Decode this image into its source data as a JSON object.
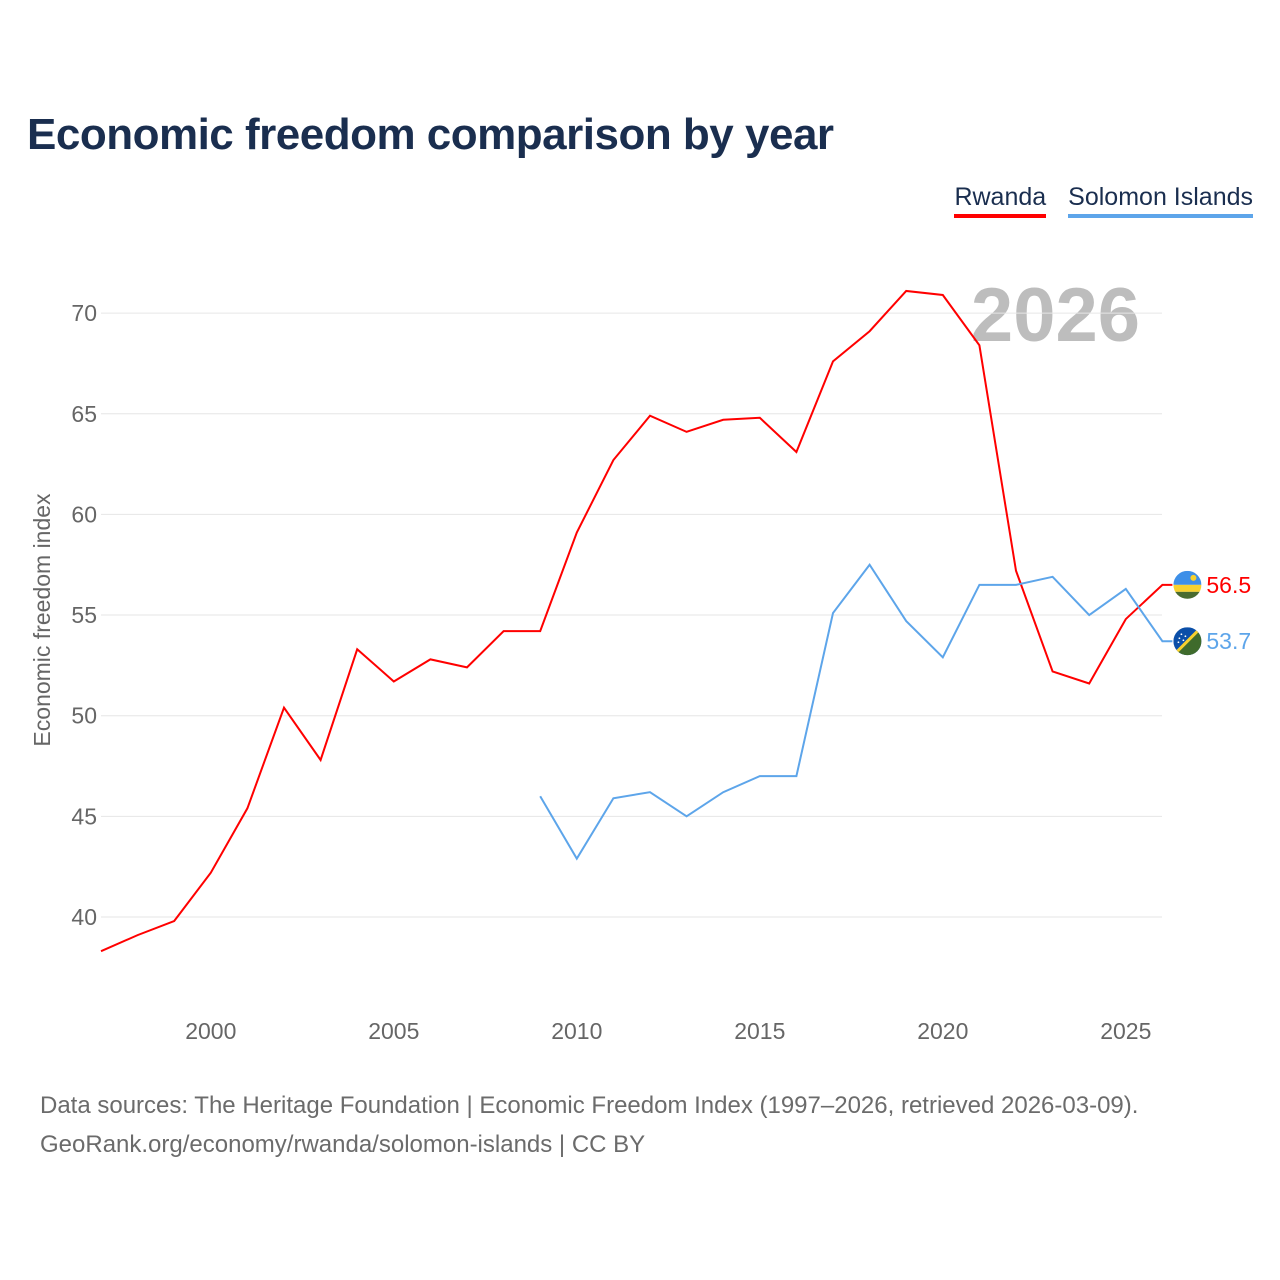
{
  "chart_data": {
    "type": "line",
    "title": "Economic freedom comparison by year",
    "xlabel": "",
    "ylabel": "Economic freedom index",
    "xlim": [
      1997,
      2026
    ],
    "ylim": [
      35,
      73
    ],
    "yticks": [
      40,
      45,
      50,
      55,
      60,
      65,
      70
    ],
    "xticks": [
      2000,
      2005,
      2010,
      2015,
      2020,
      2025
    ],
    "grid": true,
    "legend_position": "top-right",
    "year_label": "2026",
    "series": [
      {
        "name": "Rwanda",
        "color": "#ff0000",
        "end_label": "56.5",
        "x": [
          1997,
          1998,
          1999,
          2000,
          2001,
          2002,
          2003,
          2004,
          2005,
          2006,
          2007,
          2008,
          2009,
          2010,
          2011,
          2012,
          2013,
          2014,
          2015,
          2016,
          2017,
          2018,
          2019,
          2020,
          2021,
          2022,
          2023,
          2024,
          2025,
          2026
        ],
        "values": [
          38.3,
          39.1,
          39.8,
          42.2,
          45.4,
          50.4,
          47.8,
          53.3,
          51.7,
          52.8,
          52.4,
          54.2,
          54.2,
          59.1,
          62.7,
          64.9,
          64.1,
          64.7,
          64.8,
          63.1,
          67.6,
          69.1,
          71.1,
          70.9,
          68.4,
          57.2,
          52.2,
          51.6,
          54.8,
          56.5
        ]
      },
      {
        "name": "Solomon Islands",
        "color": "#5da5ea",
        "end_label": "53.7",
        "x": [
          2009,
          2010,
          2011,
          2012,
          2013,
          2014,
          2015,
          2016,
          2017,
          2018,
          2019,
          2020,
          2021,
          2022,
          2023,
          2024,
          2025,
          2026
        ],
        "values": [
          46.0,
          42.9,
          45.9,
          46.2,
          45.0,
          46.2,
          47.0,
          47.0,
          55.1,
          57.5,
          54.7,
          52.9,
          56.5,
          56.5,
          56.9,
          55.0,
          56.3,
          53.7
        ]
      }
    ]
  },
  "footer": {
    "line1": "Data sources: The Heritage Foundation | Economic Freedom Index (1997–2026, retrieved 2026-03-09).",
    "line2": "GeoRank.org/economy/rwanda/solomon-islands | CC BY"
  }
}
